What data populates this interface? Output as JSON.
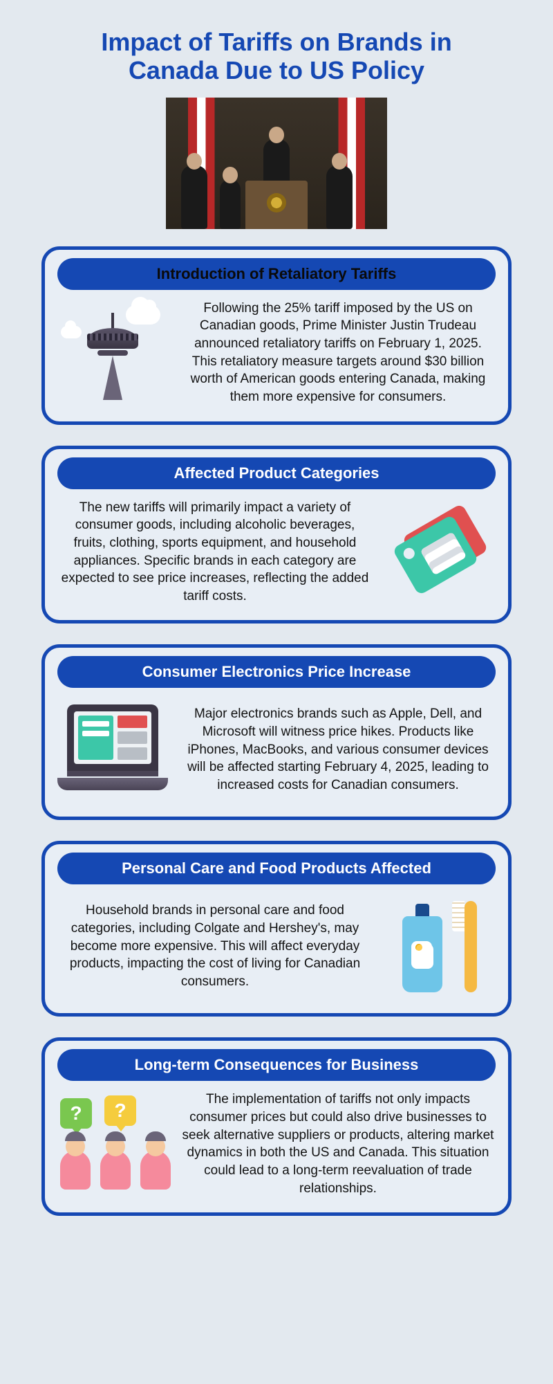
{
  "title": "Impact of Tariffs on Brands in Canada Due to US Policy",
  "colors": {
    "page_bg": "#e3e9ef",
    "card_border": "#1548b3",
    "header_bg": "#1548b3",
    "header_text_light": "#ffffff",
    "header_text_dark": "#0a0a0a",
    "body_text": "#111111",
    "title_color": "#1548b3"
  },
  "typography": {
    "title_fontsize": 36,
    "header_fontsize": 22,
    "body_fontsize": 19
  },
  "sections": [
    {
      "heading": "Introduction of Retaliatory Tariffs",
      "heading_style": "dark",
      "icon": "tower",
      "icon_side": "left",
      "text": "Following the 25% tariff imposed by the US on Canadian goods, Prime Minister Justin Trudeau announced retaliatory tariffs on February 1, 2025. This retaliatory measure targets around $30 billion worth of American goods entering Canada, making them more expensive for consumers."
    },
    {
      "heading": "Affected Product Categories",
      "heading_style": "light",
      "icon": "tag",
      "icon_side": "right",
      "text": "The new tariffs will primarily impact a variety of consumer goods, including alcoholic beverages, fruits, clothing, sports equipment, and household appliances. Specific brands in each category are expected to see price increases, reflecting the added tariff costs."
    },
    {
      "heading": "Consumer Electronics Price Increase",
      "heading_style": "light",
      "icon": "laptop",
      "icon_side": "left",
      "text": "Major electronics brands such as Apple, Dell, and Microsoft will witness price hikes. Products like iPhones, MacBooks, and various consumer devices will be affected starting February 4, 2025, leading to increased costs for Canadian consumers."
    },
    {
      "heading": "Personal Care and Food Products Affected",
      "heading_style": "light",
      "icon": "care",
      "icon_side": "right",
      "text": "Household brands in personal care and food categories, including Colgate and Hershey's, may become more expensive. This will affect everyday products, impacting the cost of living for Canadian consumers."
    },
    {
      "heading": "Long-term Consequences for Business",
      "heading_style": "light",
      "icon": "people",
      "icon_side": "left",
      "text": "The implementation of tariffs not only impacts consumer prices but could also drive businesses to seek alternative suppliers or products, altering market dynamics in both the US and Canada. This situation could lead to a long-term reevaluation of trade relationships."
    }
  ]
}
